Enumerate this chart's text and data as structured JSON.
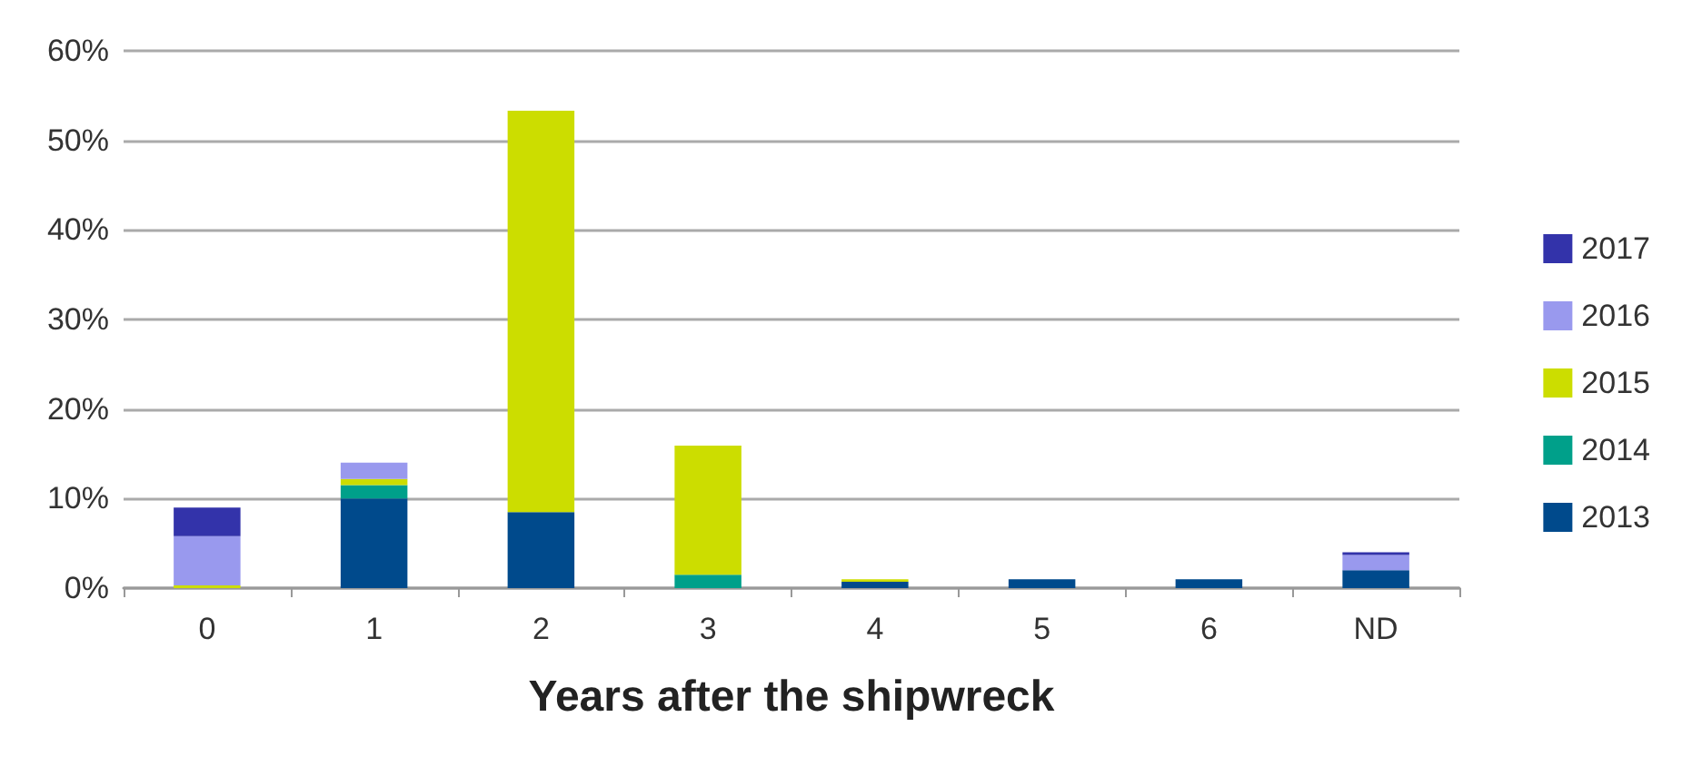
{
  "chart_data": {
    "type": "bar",
    "stacked": true,
    "xlabel": "Years after the shipwreck",
    "categories": [
      "0",
      "1",
      "2",
      "3",
      "4",
      "5",
      "6",
      "ND"
    ],
    "series": [
      {
        "name": "2013",
        "color": "#004a8c",
        "values": [
          null,
          10,
          8.5,
          null,
          0.7,
          1,
          1,
          2
        ]
      },
      {
        "name": "2014",
        "color": "#00a08a",
        "values": [
          null,
          1.5,
          null,
          1.5,
          null,
          null,
          null,
          null
        ]
      },
      {
        "name": "2015",
        "color": "#ccdd00",
        "values": [
          0.3,
          0.7,
          44.8,
          14.4,
          0.3,
          null,
          null,
          null
        ]
      },
      {
        "name": "2016",
        "color": "#9999ee",
        "values": [
          5.5,
          1.8,
          null,
          null,
          null,
          null,
          null,
          1.7
        ]
      },
      {
        "name": "2017",
        "color": "#3333aa",
        "values": [
          3.2,
          null,
          null,
          null,
          null,
          null,
          null,
          0.3
        ]
      }
    ],
    "ylim": [
      0,
      60
    ],
    "yticks": [
      {
        "value": 0,
        "label": "0%"
      },
      {
        "value": 10,
        "label": "10%"
      },
      {
        "value": 20,
        "label": "20%"
      },
      {
        "value": 30,
        "label": "30%"
      },
      {
        "value": 40,
        "label": "40%"
      },
      {
        "value": 50,
        "label": "50%"
      },
      {
        "value": 60,
        "label": "60%"
      }
    ],
    "grid": "y",
    "legend": "right"
  }
}
